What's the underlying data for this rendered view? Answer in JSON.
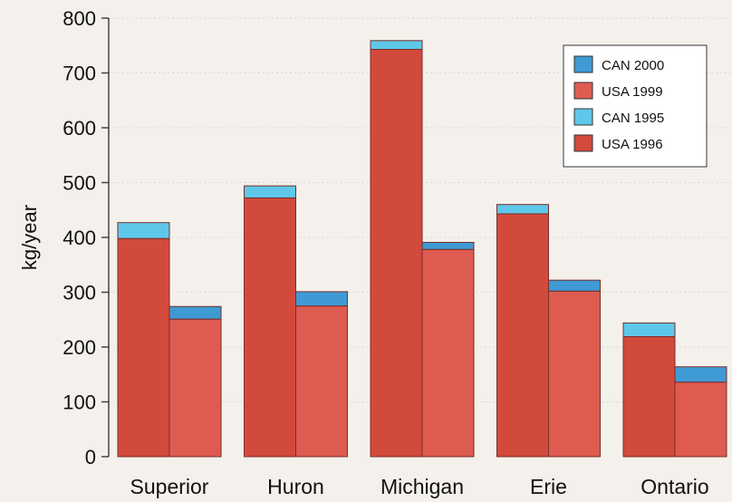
{
  "chart_data": {
    "type": "bar",
    "stacked": true,
    "grouped": true,
    "title": "",
    "xlabel": "",
    "ylabel": "kg/year",
    "ylim": [
      0,
      800
    ],
    "yticks": [
      0,
      100,
      200,
      300,
      400,
      500,
      600,
      700,
      800
    ],
    "grid": true,
    "legend_position": "top-right",
    "categories": [
      "Superior",
      "Huron",
      "Michigan",
      "Erie",
      "Ontario"
    ],
    "series": [
      {
        "name": "USA 1996",
        "group": "1995-1996",
        "values": [
          398,
          472,
          743,
          443,
          219
        ],
        "color": "#d24a3c"
      },
      {
        "name": "CAN 1995",
        "group": "1995-1996",
        "values": [
          29,
          22,
          16,
          17,
          25
        ],
        "color": "#5ec8ea"
      },
      {
        "name": "USA 1999",
        "group": "1999-2000",
        "values": [
          251,
          275,
          378,
          302,
          136
        ],
        "color": "#de5b52"
      },
      {
        "name": "CAN 2000",
        "group": "1999-2000",
        "values": [
          23,
          26,
          13,
          20,
          28
        ],
        "color": "#3f9ad4"
      }
    ],
    "legend_order": [
      "CAN 2000",
      "USA 1999",
      "CAN 1995",
      "USA 1996"
    ]
  }
}
